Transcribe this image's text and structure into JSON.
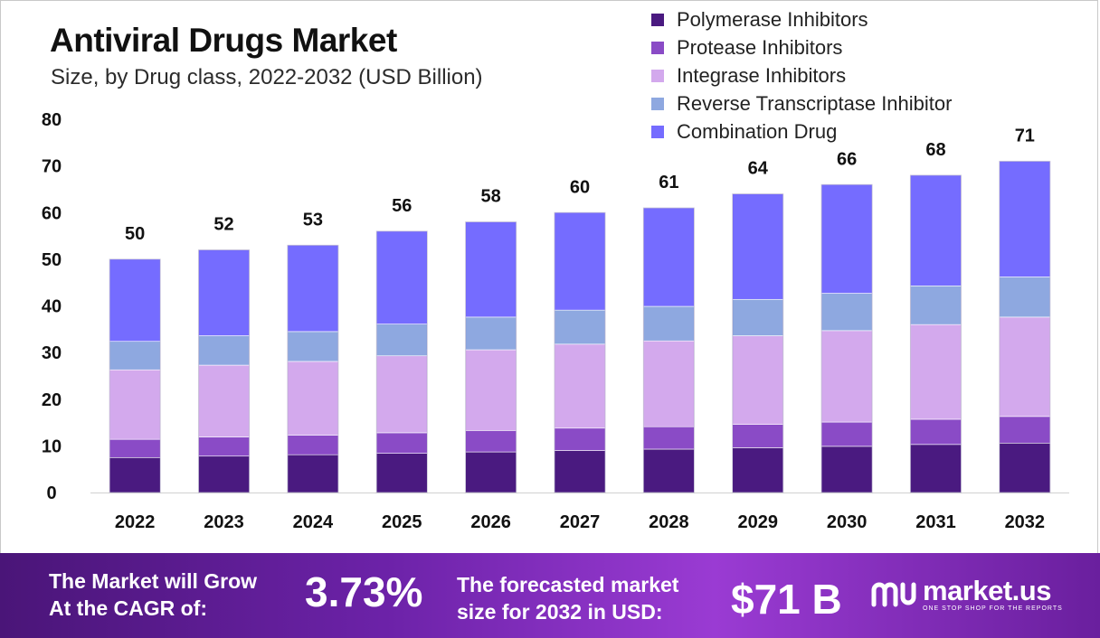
{
  "header": {
    "title": "Antiviral Drugs Market",
    "subtitle": "Size, by Drug class, 2022-2032 (USD Billion)"
  },
  "chart_data": {
    "type": "bar",
    "stacked": true,
    "title": "Antiviral Drugs Market",
    "subtitle": "Size, by Drug class, 2022-2032 (USD Billion)",
    "xlabel": "",
    "ylabel": "",
    "ylim": [
      0,
      80
    ],
    "yticks": [
      0,
      10,
      20,
      30,
      40,
      50,
      60,
      70,
      80
    ],
    "grid": false,
    "legend_position": "top-right",
    "categories": [
      "2022",
      "2023",
      "2024",
      "2025",
      "2026",
      "2027",
      "2028",
      "2029",
      "2030",
      "2031",
      "2032"
    ],
    "totals": [
      50,
      52,
      53,
      56,
      58,
      60,
      61,
      64,
      66,
      68,
      71
    ],
    "series": [
      {
        "name": "Polymerase Inhibitors",
        "color": "#4a1a80",
        "values": [
          7.5,
          7.8,
          8.1,
          8.4,
          8.7,
          9.0,
          9.3,
          9.6,
          9.9,
          10.3,
          10.6
        ]
      },
      {
        "name": "Protease Inhibitors",
        "color": "#8a4bc6",
        "values": [
          3.9,
          4.1,
          4.2,
          4.4,
          4.6,
          4.8,
          4.8,
          5.0,
          5.2,
          5.4,
          5.7
        ]
      },
      {
        "name": "Integrase Inhibitors",
        "color": "#d3a9ed",
        "values": [
          14.9,
          15.4,
          15.8,
          16.5,
          17.3,
          18.0,
          18.4,
          19.0,
          19.6,
          20.3,
          21.3
        ]
      },
      {
        "name": "Reverse Transcriptase Inhibitor",
        "color": "#8ea8e0",
        "values": [
          6.1,
          6.3,
          6.4,
          6.8,
          7.0,
          7.3,
          7.4,
          7.8,
          8.0,
          8.3,
          8.6
        ]
      },
      {
        "name": "Combination Drug",
        "color": "#756cff",
        "values": [
          17.6,
          18.4,
          18.5,
          19.9,
          20.4,
          20.9,
          21.1,
          22.6,
          23.3,
          23.7,
          24.8
        ]
      }
    ]
  },
  "footer": {
    "cagr_label_line1": "The Market will Grow",
    "cagr_label_line2": "At the CAGR of:",
    "cagr_value": "3.73%",
    "forecast_label_line1": "The forecasted market",
    "forecast_label_line2": "size for 2032 in USD:",
    "forecast_value": "$71 B",
    "brand_name": "market.us",
    "brand_tagline": "ONE STOP SHOP FOR THE REPORTS"
  }
}
